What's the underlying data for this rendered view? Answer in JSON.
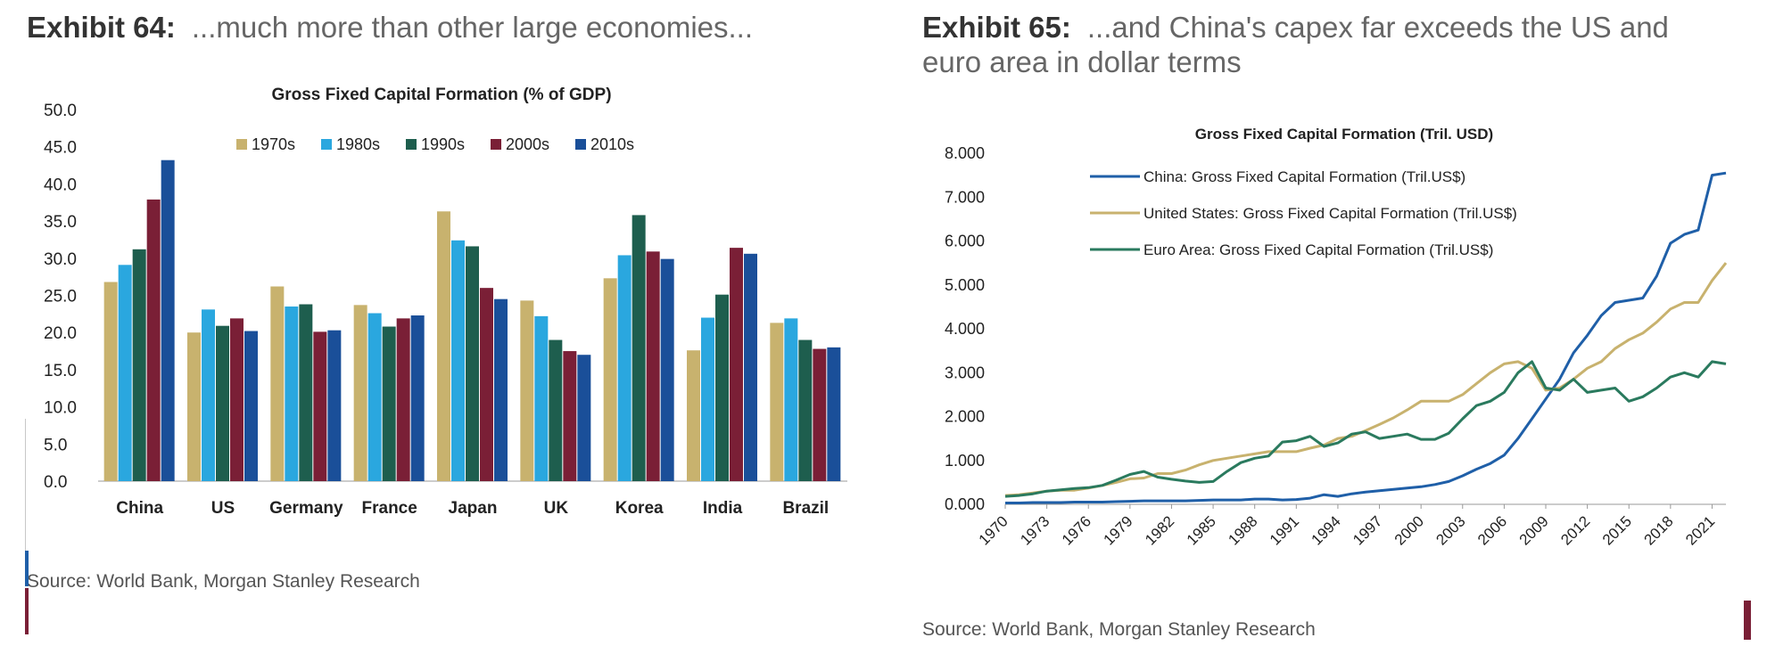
{
  "exhibit64": {
    "label": "Exhibit 64:",
    "subtitle": "...much more than other large economies...",
    "source": "Source: World Bank, Morgan Stanley Research"
  },
  "exhibit65": {
    "label": "Exhibit 65:",
    "subtitle": "...and China's capex far exceeds the US and euro area in dollar terms",
    "source": "Source: World Bank, Morgan Stanley Research"
  },
  "chart_data": [
    {
      "type": "bar",
      "title": "Gross Fixed Capital Formation (% of GDP)",
      "categories": [
        "China",
        "US",
        "Germany",
        "France",
        "Japan",
        "UK",
        "Korea",
        "India",
        "Brazil"
      ],
      "series": [
        {
          "name": "1970s",
          "color": "#c8b26e",
          "values": [
            26.8,
            20.0,
            26.2,
            23.7,
            36.3,
            24.3,
            27.3,
            17.6,
            21.3
          ]
        },
        {
          "name": "1980s",
          "color": "#2aa7df",
          "values": [
            29.1,
            23.1,
            23.5,
            22.6,
            32.4,
            22.2,
            30.4,
            22.0,
            21.9
          ]
        },
        {
          "name": "1990s",
          "color": "#1e5e4e",
          "values": [
            31.2,
            20.9,
            23.8,
            20.8,
            31.6,
            19.0,
            35.8,
            25.1,
            19.0
          ]
        },
        {
          "name": "2000s",
          "color": "#7a1f36",
          "values": [
            37.9,
            21.9,
            20.1,
            21.9,
            26.0,
            17.5,
            30.9,
            31.4,
            17.8
          ]
        },
        {
          "name": "2010s",
          "color": "#1a4f99",
          "values": [
            43.2,
            20.2,
            20.3,
            22.3,
            24.5,
            17.0,
            29.9,
            30.6,
            18.0
          ]
        }
      ],
      "xlabel": "",
      "ylabel": "",
      "ylim": [
        0,
        50
      ],
      "yticks": [
        "0.0",
        "5.0",
        "10.0",
        "15.0",
        "20.0",
        "25.0",
        "30.0",
        "35.0",
        "40.0",
        "45.0",
        "50.0"
      ],
      "legend": "top"
    },
    {
      "type": "line",
      "title": "Gross Fixed Capital Formation  (Tril. USD)",
      "x": [
        1970,
        1971,
        1972,
        1973,
        1974,
        1975,
        1976,
        1977,
        1978,
        1979,
        1980,
        1981,
        1982,
        1983,
        1984,
        1985,
        1986,
        1987,
        1988,
        1989,
        1990,
        1991,
        1992,
        1993,
        1994,
        1995,
        1996,
        1997,
        1998,
        1999,
        2000,
        2001,
        2002,
        2003,
        2004,
        2005,
        2006,
        2007,
        2008,
        2009,
        2010,
        2011,
        2012,
        2013,
        2014,
        2015,
        2016,
        2017,
        2018,
        2019,
        2020,
        2021,
        2022
      ],
      "xticks": [
        "1970",
        "1973",
        "1976",
        "1979",
        "1982",
        "1985",
        "1988",
        "1991",
        "1994",
        "1997",
        "2000",
        "2003",
        "2006",
        "2009",
        "2012",
        "2015",
        "2018",
        "2021"
      ],
      "series": [
        {
          "name": "China: Gross Fixed Capital Formation (Tril.US$)",
          "color": "#1f5fa8",
          "values": [
            0.03,
            0.03,
            0.04,
            0.04,
            0.04,
            0.05,
            0.05,
            0.05,
            0.06,
            0.07,
            0.08,
            0.08,
            0.08,
            0.08,
            0.09,
            0.1,
            0.1,
            0.1,
            0.12,
            0.12,
            0.1,
            0.11,
            0.14,
            0.22,
            0.18,
            0.24,
            0.28,
            0.31,
            0.34,
            0.37,
            0.4,
            0.45,
            0.52,
            0.65,
            0.8,
            0.93,
            1.12,
            1.5,
            1.95,
            2.4,
            2.85,
            3.45,
            3.85,
            4.3,
            4.6,
            4.65,
            4.7,
            5.2,
            5.95,
            6.15,
            6.25,
            7.5,
            7.55
          ]
        },
        {
          "name": "United States: Gross Fixed Capital Formation (Tril.US$)",
          "color": "#c8b26e",
          "values": [
            0.2,
            0.22,
            0.26,
            0.3,
            0.32,
            0.32,
            0.37,
            0.43,
            0.5,
            0.58,
            0.6,
            0.7,
            0.7,
            0.78,
            0.9,
            1.0,
            1.05,
            1.1,
            1.15,
            1.2,
            1.2,
            1.2,
            1.28,
            1.35,
            1.5,
            1.55,
            1.68,
            1.82,
            1.97,
            2.15,
            2.35,
            2.35,
            2.35,
            2.5,
            2.75,
            3.0,
            3.2,
            3.25,
            3.1,
            2.6,
            2.65,
            2.85,
            3.1,
            3.25,
            3.55,
            3.75,
            3.9,
            4.15,
            4.45,
            4.6,
            4.6,
            5.1,
            5.5
          ]
        },
        {
          "name": "Euro Area: Gross Fixed Capital Formation (Tril.US$)",
          "color": "#2a7a5e",
          "values": [
            0.18,
            0.2,
            0.24,
            0.3,
            0.33,
            0.36,
            0.38,
            0.43,
            0.55,
            0.68,
            0.75,
            0.62,
            0.57,
            0.53,
            0.5,
            0.52,
            0.75,
            0.95,
            1.05,
            1.1,
            1.42,
            1.45,
            1.55,
            1.32,
            1.4,
            1.6,
            1.65,
            1.5,
            1.55,
            1.6,
            1.48,
            1.48,
            1.62,
            1.95,
            2.25,
            2.35,
            2.55,
            3.0,
            3.25,
            2.65,
            2.6,
            2.85,
            2.55,
            2.6,
            2.65,
            2.35,
            2.45,
            2.65,
            2.9,
            3.0,
            2.9,
            3.25,
            3.2
          ]
        }
      ],
      "xlabel": "",
      "ylabel": "",
      "ylim": [
        0,
        8
      ],
      "yticks": [
        "0.000",
        "1.000",
        "2.000",
        "3.000",
        "4.000",
        "5.000",
        "6.000",
        "7.000",
        "8.000"
      ],
      "legend": "top-left"
    }
  ]
}
